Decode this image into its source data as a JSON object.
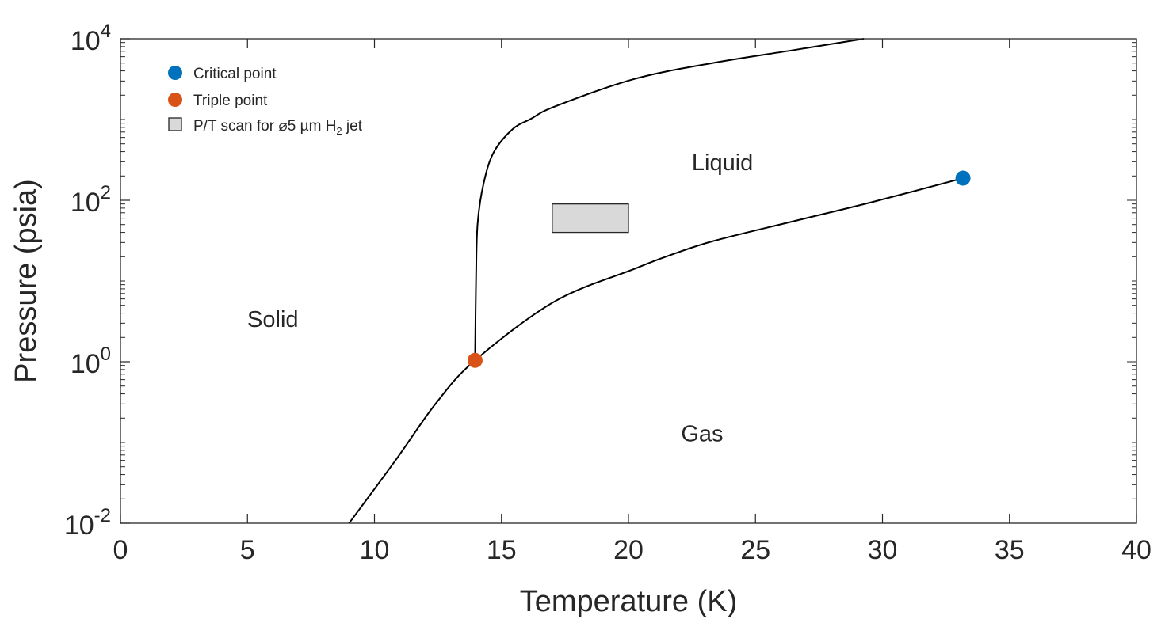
{
  "chart_data": {
    "type": "line",
    "title": "",
    "xlabel": "Temperature (K)",
    "ylabel": "Pressure (psia)",
    "xlim": [
      0,
      40
    ],
    "ylim": [
      0.01,
      10000
    ],
    "yscale": "log",
    "grid": false,
    "legend_placement": "top-left",
    "x_ticks": [
      0,
      5,
      10,
      15,
      20,
      25,
      30,
      35,
      40
    ],
    "y_ticks": [
      {
        "value": 0.01,
        "base": "10",
        "exp": "-2"
      },
      {
        "value": 1,
        "base": "10",
        "exp": "0"
      },
      {
        "value": 100,
        "base": "10",
        "exp": "2"
      },
      {
        "value": 10000,
        "base": "10",
        "exp": "4"
      }
    ],
    "series": [
      {
        "key": "melting",
        "color": "#000000",
        "points": [
          [
            13.96,
            1.04
          ],
          [
            14.0,
            11
          ],
          [
            14.06,
            51
          ],
          [
            14.29,
            158
          ],
          [
            14.69,
            390
          ],
          [
            15.44,
            760
          ],
          [
            16.16,
            1020
          ],
          [
            17.1,
            1450
          ],
          [
            20.2,
            3160
          ],
          [
            23.3,
            5000
          ],
          [
            26.5,
            7240
          ],
          [
            29.27,
            10000
          ]
        ]
      },
      {
        "key": "vapor",
        "color": "#000000",
        "points": [
          [
            9.0,
            0.01
          ],
          [
            10.86,
            0.062
          ],
          [
            12.4,
            0.3
          ],
          [
            13.96,
            1.04
          ],
          [
            17.1,
            5.6
          ],
          [
            20.2,
            14
          ],
          [
            21.47,
            20
          ],
          [
            23.3,
            31
          ],
          [
            26.5,
            55
          ],
          [
            29.6,
            95
          ],
          [
            33.17,
            188
          ]
        ]
      }
    ],
    "markers": [
      {
        "name": "Critical point",
        "T": 33.17,
        "P": 188,
        "color": "#0072BD"
      },
      {
        "name": "Triple point",
        "T": 13.96,
        "P": 1.04,
        "color": "#D95319"
      }
    ],
    "scan_region": {
      "name_prefix": "P/T scan for ⌀5 µm H",
      "name_sub": "2",
      "name_suffix": " jet",
      "T": [
        17,
        20
      ],
      "P": [
        40,
        90
      ],
      "fill": "#D9D9D9"
    },
    "annotations": [
      {
        "text": "Solid",
        "T": 6.0,
        "P": 3.4
      },
      {
        "text": "Liquid",
        "T": 23.7,
        "P": 295
      },
      {
        "text": "Gas",
        "T": 22.9,
        "P": 0.13
      }
    ]
  }
}
